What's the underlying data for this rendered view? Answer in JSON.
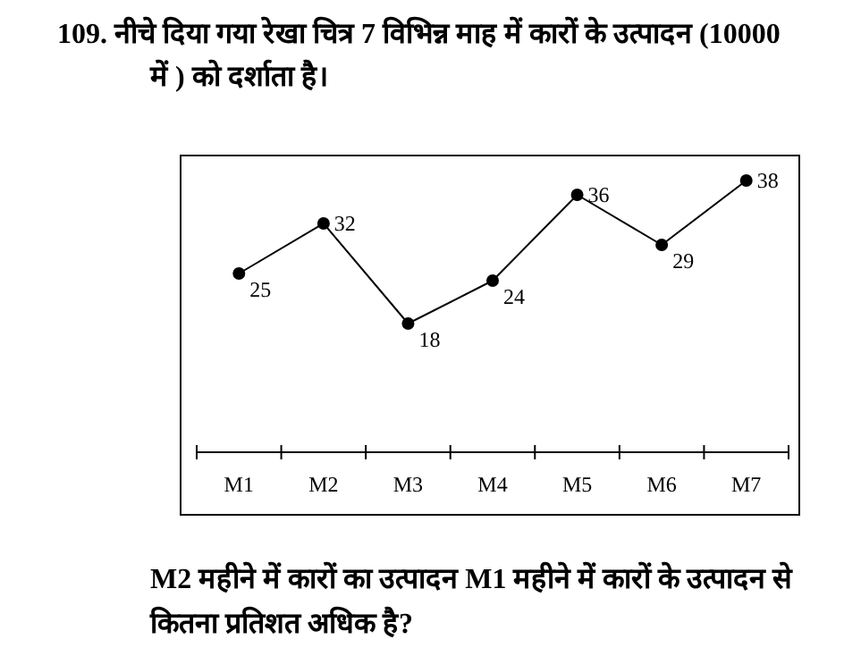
{
  "chart_data": {
    "type": "line",
    "title": "109.  नीचे दिया गया रेखा चित्र 7 विभिन्न माह में कारों के उत्पादन (10000 में ) को दर्शाता है।",
    "categories": [
      "M1",
      "M2",
      "M3",
      "M4",
      "M5",
      "M6",
      "M7"
    ],
    "series": [
      {
        "color": "#000000",
        "values": [
          25,
          32,
          18,
          24,
          36,
          29,
          38
        ]
      }
    ],
    "data_labels": true,
    "marker": "circle",
    "line_style": "solid",
    "tick_labels": "x",
    "annotations": [
      "M2 महीने में कारों का उत्पादन M1 महीने में कारों के उत्पादन से कितना प्रतिशत अधिक है?"
    ]
  }
}
